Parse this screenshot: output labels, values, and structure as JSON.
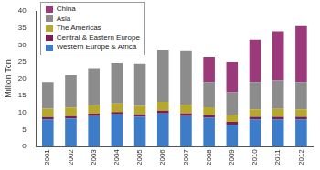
{
  "chart_data": {
    "type": "bar",
    "stacked": true,
    "grid": false,
    "legend": "upper left",
    "y_label": "Million Ton",
    "categories": [
      "2001",
      "2002",
      "2003",
      "2004",
      "2005",
      "2006",
      "2007",
      "2008",
      "2009",
      "2010",
      "2011",
      "2012"
    ],
    "ylim": [
      0,
      40
    ],
    "yticks": [
      0,
      5,
      10,
      15,
      20,
      25,
      30,
      35,
      40
    ],
    "series": [
      {
        "name": "Western Europe & Africa",
        "color": "#3d7cc9",
        "values": [
          8,
          8.3,
          9,
          9.5,
          8.8,
          9.8,
          9,
          8.5,
          6.5,
          8,
          8,
          8
        ]
      },
      {
        "name": "Central & Eastern Europe",
        "color": "#7a1f4f",
        "values": [
          0.7,
          0.7,
          0.7,
          0.7,
          0.7,
          0.8,
          0.8,
          0.8,
          0.8,
          0.8,
          0.8,
          0.8
        ]
      },
      {
        "name": "The Americas",
        "color": "#b5a82a",
        "values": [
          2.5,
          2.5,
          2.5,
          2.5,
          2.5,
          2.6,
          2.5,
          2.3,
          2,
          2.2,
          2.3,
          2.2
        ]
      },
      {
        "name": "Asia",
        "color": "#8c8c8c",
        "values": [
          7.8,
          9.5,
          10.8,
          12,
          12.5,
          15.3,
          16,
          7.4,
          6.7,
          8,
          8.4,
          8
        ]
      },
      {
        "name": "China",
        "color": "#9b3a7a",
        "values": [
          0,
          0,
          0,
          0,
          0,
          0,
          0,
          7.3,
          9,
          12.5,
          14.5,
          16.5
        ]
      }
    ]
  }
}
